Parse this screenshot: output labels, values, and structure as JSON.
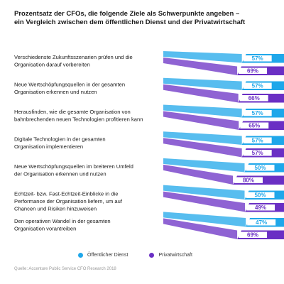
{
  "title_lines": [
    "Prozentsatz der CFOs, die folgende Ziele als Schwerpunkte angeben –",
    "ein Vergleich zwischen dem öffentlichen Dienst und der Privatwirtschaft"
  ],
  "legend": [
    {
      "label": "Öffentlicher Dienst",
      "color": "#1fa7ea"
    },
    {
      "label": "Privatwirtschaft",
      "color": "#6a2fc4"
    }
  ],
  "source": "Quelle: Accenture Public Service CFO Research 2018",
  "chart_data": {
    "type": "bar",
    "categories": [
      [
        "Verschiedenste Zukunftsszenarien prüfen und die",
        "Organisation darauf vorbereiten"
      ],
      [
        "Neue Wertschöpfungsquellen in der gesamten",
        "Organisation erkennen und nutzen"
      ],
      [
        "Herausfinden, wie die gesamte Organisation von",
        "bahnbrechenden neuen Technologien profitieren kann"
      ],
      [
        "Digitale Technologien in der gesamten",
        "Organisation implementieren"
      ],
      [
        "Neue Wertschöpfungsquellen im breiteren Umfeld",
        "der Organisation erkennen und nutzen"
      ],
      [
        "Echtzeit- bzw. Fast-Echtzeit-Einblicke in die",
        "Performance der Organisation liefern, um auf",
        "Chancen und Risiken hinzuweisen"
      ],
      [
        "Den operativen Wandel in der gesamten",
        "Organisation vorantreiben"
      ]
    ],
    "series": [
      {
        "name": "Öffentlicher Dienst",
        "color": "#1fa7ea",
        "values": [
          57,
          57,
          57,
          57,
          50,
          50,
          47
        ],
        "labels": [
          "57%",
          "57%",
          "57%",
          "57%",
          "50%",
          "50%",
          "47%"
        ]
      },
      {
        "name": "Privatwirtschaft",
        "color": "#6a2fc4",
        "values": [
          69,
          66,
          65,
          57,
          80,
          49,
          69
        ],
        "labels": [
          "69%",
          "66%",
          "65%",
          "57%",
          "80%",
          "49%",
          "69%"
        ]
      }
    ]
  }
}
